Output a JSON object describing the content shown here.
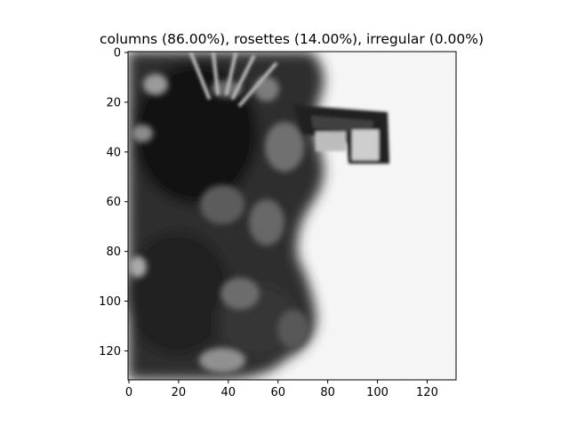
{
  "figure": {
    "title": "columns (86.00%), rosettes (14.00%), irregular (0.00%)",
    "image_description": "Grayscale micrograph of an ice crystal particle (columns/rosettes) against a light background",
    "image_extent": [
      0,
      132
    ],
    "x_axis": {
      "ticks": [
        0,
        20,
        40,
        60,
        80,
        100,
        120
      ],
      "tick_labels": [
        "0",
        "20",
        "40",
        "60",
        "80",
        "100",
        "120"
      ]
    },
    "y_axis": {
      "ticks": [
        0,
        20,
        40,
        60,
        80,
        100,
        120
      ],
      "tick_labels": [
        "0",
        "20",
        "40",
        "60",
        "80",
        "100",
        "120"
      ],
      "inverted": true
    },
    "colors": {
      "background": "#f7f7f7",
      "particle_dark": "#1a1a1a",
      "particle_mid": "#555555",
      "axis": "#000000"
    }
  }
}
